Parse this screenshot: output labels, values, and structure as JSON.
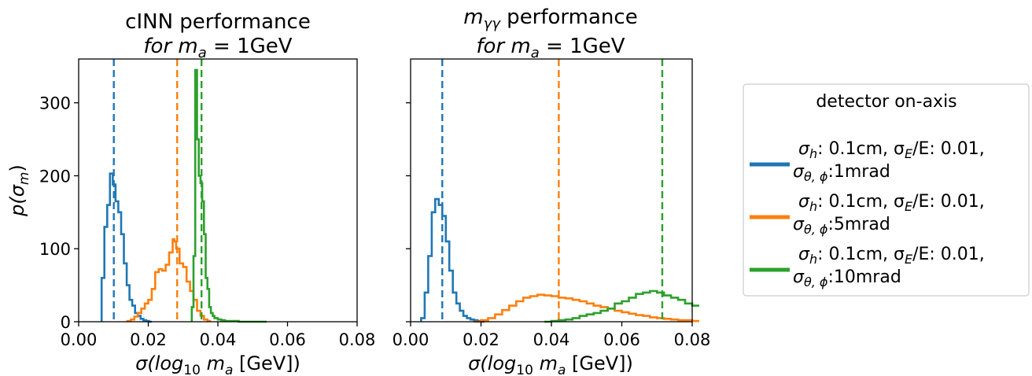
{
  "figure": {
    "ylabel": "p(σ",
    "ylabel_sub": "m",
    "ylabel_close": ")",
    "xlabel": "σ(log",
    "xlabel_sub": "10",
    "xlabel_mid": " m",
    "xlabel_sub2": "a",
    "xlabel_end": " [GeV])"
  },
  "legend": {
    "title": "detector on-axis",
    "entries": [
      {
        "color": "#1f77b4",
        "line1_a": "σ",
        "line1_sub": "h",
        "line1_b": ":   0.1cm, σ",
        "line1_sub2": "E",
        "line1_c": "/E: 0.01,",
        "line2_a": "σ",
        "line2_sub": "θ, ϕ",
        "line2_b": ":1mrad"
      },
      {
        "color": "#ff7f0e",
        "line1_a": "σ",
        "line1_sub": "h",
        "line1_b": ":   0.1cm, σ",
        "line1_sub2": "E",
        "line1_c": "/E: 0.01,",
        "line2_a": "σ",
        "line2_sub": "θ, ϕ",
        "line2_b": ":5mrad"
      },
      {
        "color": "#2ca02c",
        "line1_a": "σ",
        "line1_sub": "h",
        "line1_b": ":   0.1cm, σ",
        "line1_sub2": "E",
        "line1_c": "/E: 0.01,",
        "line2_a": "σ",
        "line2_sub": "θ, ϕ",
        "line2_b": ":10mrad"
      }
    ]
  },
  "chart_data": [
    {
      "type": "histogram",
      "title_line1": "cINN performance",
      "title_line2_a": "for m",
      "title_line2_sub": "a",
      "title_line2_b": " = 1GeV",
      "xlim": [
        0,
        0.08
      ],
      "ylim": [
        0,
        360
      ],
      "xticks": [
        "0.00",
        "0.02",
        "0.04",
        "0.06",
        "0.08"
      ],
      "yticks": [
        "0",
        "100",
        "200",
        "300"
      ],
      "series": [
        {
          "color": "#1f77b4",
          "vline": 0.0101,
          "x": [
            0.0066,
            0.0074,
            0.0082,
            0.009,
            0.0098,
            0.0106,
            0.0114,
            0.0122,
            0.013,
            0.0138,
            0.0146,
            0.0154,
            0.0162,
            0.017,
            0.0178,
            0.0186,
            0.0194,
            0.0202
          ],
          "y": [
            60,
            130,
            160,
            203,
            188,
            165,
            150,
            120,
            80,
            50,
            30,
            22,
            12,
            8,
            4,
            2,
            1,
            0
          ]
        },
        {
          "color": "#ff7f0e",
          "vline": 0.0283,
          "x": [
            0.014,
            0.015,
            0.016,
            0.017,
            0.018,
            0.019,
            0.02,
            0.021,
            0.022,
            0.023,
            0.024,
            0.025,
            0.026,
            0.027,
            0.0275,
            0.028,
            0.029,
            0.03,
            0.031,
            0.032,
            0.033,
            0.034,
            0.035,
            0.036,
            0.037
          ],
          "y": [
            1,
            3,
            7,
            12,
            18,
            25,
            30,
            45,
            68,
            72,
            70,
            78,
            95,
            113,
            110,
            100,
            80,
            75,
            55,
            42,
            30,
            15,
            8,
            3,
            1
          ]
        },
        {
          "color": "#2ca02c",
          "vline": 0.0353,
          "x": [
            0.0325,
            0.033,
            0.0335,
            0.034,
            0.0345,
            0.035,
            0.0355,
            0.036,
            0.0365,
            0.037,
            0.0375,
            0.038,
            0.0385,
            0.039,
            0.04,
            0.041,
            0.042,
            0.044,
            0.046,
            0.05
          ],
          "y": [
            20,
            90,
            345,
            250,
            200,
            190,
            165,
            120,
            60,
            45,
            20,
            12,
            8,
            5,
            3,
            2,
            1,
            1,
            0,
            0
          ]
        }
      ]
    },
    {
      "type": "histogram",
      "title_line1_a": "m",
      "title_line1_sub": "γγ",
      "title_line1_b": " performance",
      "title_line2_a": "for m",
      "title_line2_sub": "a",
      "title_line2_b": " = 1GeV",
      "xlim": [
        0,
        0.08
      ],
      "ylim": [
        0,
        360
      ],
      "xticks": [
        "0.00",
        "0.02",
        "0.04",
        "0.06",
        "0.08"
      ],
      "yticks": [],
      "series": [
        {
          "color": "#1f77b4",
          "vline": 0.009,
          "x": [
            0.003,
            0.004,
            0.005,
            0.006,
            0.007,
            0.008,
            0.009,
            0.01,
            0.011,
            0.012,
            0.013,
            0.014,
            0.015,
            0.016,
            0.017,
            0.018,
            0.019,
            0.02
          ],
          "y": [
            5,
            40,
            90,
            150,
            168,
            160,
            145,
            110,
            70,
            40,
            25,
            15,
            8,
            5,
            3,
            2,
            1,
            0
          ]
        },
        {
          "color": "#ff7f0e",
          "vline": 0.0421,
          "x": [
            0.018,
            0.02,
            0.022,
            0.024,
            0.026,
            0.028,
            0.03,
            0.032,
            0.034,
            0.036,
            0.038,
            0.04,
            0.042,
            0.044,
            0.046,
            0.048,
            0.05,
            0.052,
            0.054,
            0.056,
            0.058,
            0.06,
            0.062,
            0.064,
            0.066,
            0.068,
            0.07,
            0.072,
            0.074,
            0.076,
            0.078,
            0.08
          ],
          "y": [
            0,
            2,
            5,
            10,
            16,
            22,
            28,
            33,
            35,
            37,
            36,
            35,
            33,
            32,
            30,
            28,
            25,
            22,
            20,
            18,
            15,
            13,
            11,
            9,
            8,
            6,
            5,
            4,
            3,
            2,
            2,
            1
          ]
        },
        {
          "color": "#2ca02c",
          "vline": 0.0715,
          "x": [
            0.038,
            0.04,
            0.042,
            0.044,
            0.046,
            0.048,
            0.05,
            0.052,
            0.054,
            0.056,
            0.058,
            0.06,
            0.062,
            0.064,
            0.066,
            0.068,
            0.07,
            0.072,
            0.074,
            0.076,
            0.078,
            0.08
          ],
          "y": [
            0,
            1,
            2,
            3,
            5,
            8,
            10,
            12,
            15,
            18,
            25,
            28,
            33,
            38,
            40,
            42,
            40,
            36,
            33,
            30,
            25,
            22
          ]
        }
      ]
    }
  ]
}
